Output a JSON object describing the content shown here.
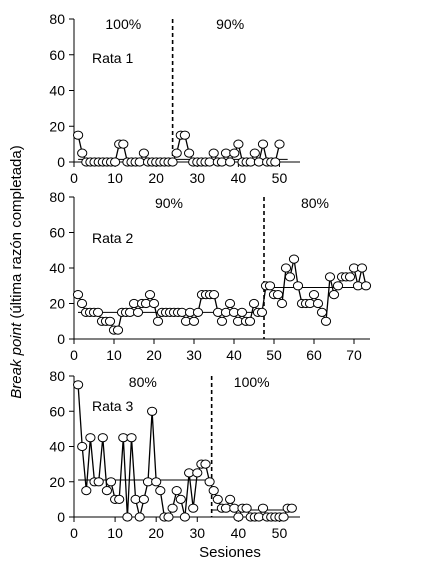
{
  "chart_data": {
    "type": "line",
    "ylabel_italic": "Break point",
    "ylabel_rest": " (última razón completada)",
    "xlabel": "Sesiones",
    "panels": [
      {
        "title": "Rata 1",
        "xlim": [
          0,
          55
        ],
        "ylim": [
          0,
          80
        ],
        "xticks": [
          0,
          10,
          20,
          30,
          40,
          50
        ],
        "yticks": [
          0,
          20,
          40,
          60,
          80
        ],
        "phase_change": 24,
        "phases": [
          {
            "label": "100%",
            "x_from": 0,
            "x_to": 24,
            "mean": 1.5
          },
          {
            "label": "90%",
            "x_from": 24,
            "x_to": 52,
            "mean": 1.5
          }
        ],
        "values": [
          15,
          5,
          0,
          0,
          0,
          0,
          0,
          0,
          0,
          0,
          10,
          10,
          0,
          0,
          0,
          0,
          5,
          0,
          0,
          0,
          0,
          0,
          0,
          0,
          5,
          15,
          15,
          5,
          0,
          0,
          0,
          0,
          0,
          5,
          0,
          0,
          5,
          0,
          5,
          10,
          0,
          0,
          0,
          5,
          0,
          10,
          0,
          0,
          0,
          10
        ]
      },
      {
        "title": "Rata 2",
        "xlim": [
          0,
          74
        ],
        "ylim": [
          0,
          80
        ],
        "xticks": [
          0,
          10,
          20,
          30,
          40,
          50,
          60,
          70
        ],
        "yticks": [
          0,
          20,
          40,
          60,
          80
        ],
        "phase_change": 47.5,
        "phases": [
          {
            "label": "90%",
            "x_from": 0,
            "x_to": 47.5,
            "mean": 15
          },
          {
            "label": "80%",
            "x_from": 47.5,
            "x_to": 73,
            "mean": 29
          }
        ],
        "values": [
          25,
          20,
          15,
          15,
          15,
          15,
          10,
          10,
          10,
          5,
          5,
          15,
          15,
          15,
          20,
          15,
          20,
          20,
          25,
          20,
          10,
          15,
          15,
          15,
          15,
          15,
          15,
          10,
          15,
          10,
          15,
          25,
          25,
          25,
          25,
          15,
          10,
          15,
          20,
          15,
          10,
          15,
          10,
          10,
          20,
          15,
          15,
          30,
          30,
          25,
          25,
          20,
          40,
          35,
          45,
          30,
          20,
          20,
          20,
          25,
          20,
          15,
          10,
          35,
          25,
          30,
          35,
          35,
          35,
          40,
          30,
          40,
          30
        ]
      },
      {
        "title": "Rata 3",
        "xlim": [
          0,
          55
        ],
        "ylim": [
          0,
          80
        ],
        "xticks": [
          0,
          10,
          20,
          30,
          40,
          50
        ],
        "yticks": [
          0,
          20,
          40,
          60,
          80
        ],
        "phase_change": 33.5,
        "phases": [
          {
            "label": "80%",
            "x_from": 0,
            "x_to": 33.5,
            "mean": 21
          },
          {
            "label": "100%",
            "x_from": 33.5,
            "x_to": 53,
            "mean": 4
          }
        ],
        "values": [
          75,
          40,
          15,
          45,
          20,
          20,
          45,
          15,
          20,
          10,
          10,
          45,
          0,
          45,
          10,
          0,
          10,
          20,
          60,
          20,
          15,
          0,
          0,
          5,
          15,
          10,
          0,
          25,
          5,
          25,
          30,
          30,
          20,
          15,
          10,
          5,
          5,
          10,
          5,
          0,
          5,
          5,
          0,
          0,
          0,
          5,
          0,
          0,
          0,
          0,
          0,
          5,
          5
        ]
      }
    ]
  }
}
